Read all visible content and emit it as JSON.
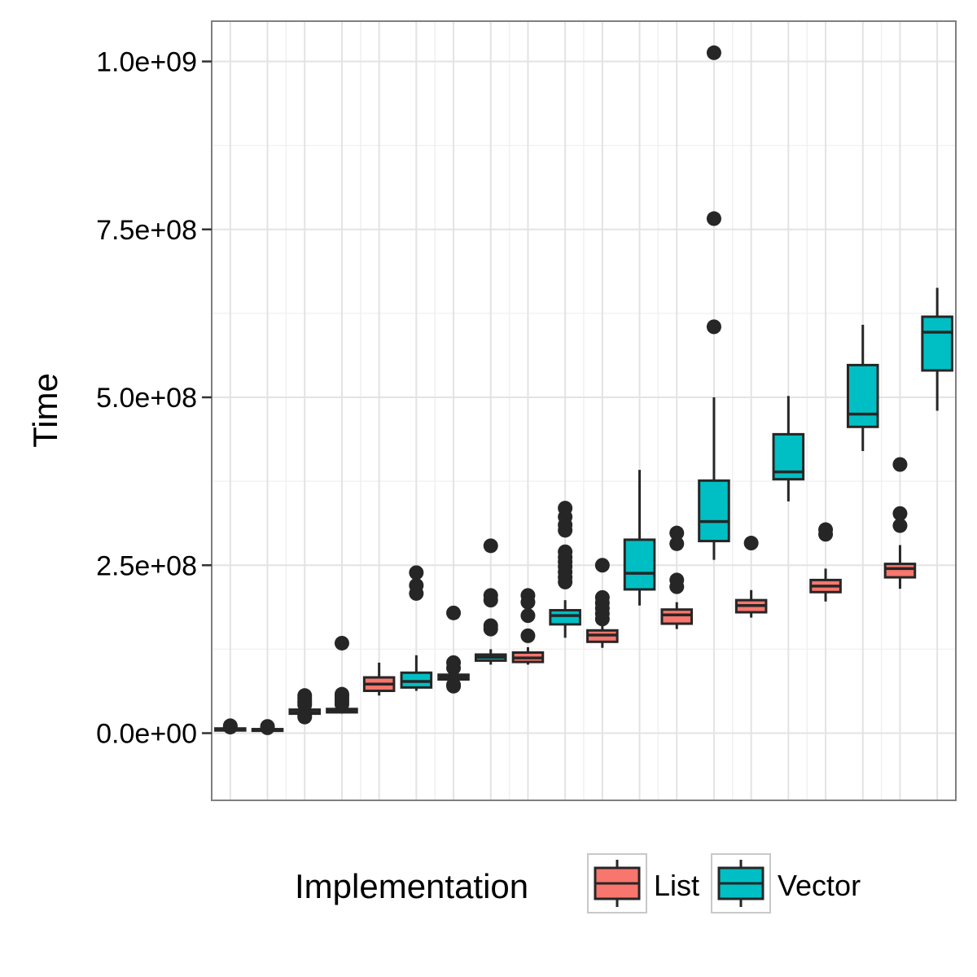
{
  "chart_data": {
    "type": "boxplot",
    "title": "",
    "xlabel": "",
    "ylabel": "Time",
    "ylim": [
      -100000000,
      1060000000
    ],
    "y_ticks": [
      0,
      250000000,
      500000000,
      750000000,
      1000000000
    ],
    "y_tick_labels": [
      "0.0e+00",
      "2.5e+08",
      "5.0e+08",
      "7.5e+08",
      "1.0e+09"
    ],
    "x_tick_labels": [],
    "grid": true,
    "legend": {
      "title": "Implementation",
      "position": "bottom",
      "entries": [
        {
          "name": "List",
          "color": "#F8766D"
        },
        {
          "name": "Vector",
          "color": "#00BFC4"
        }
      ]
    },
    "groups": [
      {
        "List": {
          "whisker_low": 3000000,
          "q1": 4000000,
          "median": 6000000,
          "q3": 7000000,
          "whisker_high": 8000000,
          "outliers": [
            11000000,
            9000000
          ]
        },
        "Vector": {
          "whisker_low": 2500000,
          "q1": 3500000,
          "median": 5000000,
          "q3": 6000000,
          "whisker_high": 7500000,
          "outliers": [
            10000000,
            8000000
          ]
        }
      },
      {
        "List": {
          "whisker_low": 26000000,
          "q1": 29000000,
          "median": 31000000,
          "q3": 35000000,
          "whisker_high": 38000000,
          "outliers": [
            56000000,
            52000000,
            48000000,
            45000000,
            42000000,
            27000000,
            24000000
          ]
        },
        "Vector": {
          "whisker_low": 29000000,
          "q1": 31000000,
          "median": 33000000,
          "q3": 36000000,
          "whisker_high": 40000000,
          "outliers": [
            134000000,
            58000000,
            55000000,
            51000000,
            47000000,
            43000000
          ]
        }
      },
      {
        "List": {
          "whisker_low": 56000000,
          "q1": 63000000,
          "median": 73000000,
          "q3": 83000000,
          "whisker_high": 105000000,
          "outliers": []
        },
        "Vector": {
          "whisker_low": 63000000,
          "q1": 68000000,
          "median": 77000000,
          "q3": 90000000,
          "whisker_high": 116000000,
          "outliers": [
            239000000,
            220000000,
            208000000
          ]
        }
      },
      {
        "List": {
          "whisker_low": 77000000,
          "q1": 80000000,
          "median": 84000000,
          "q3": 87000000,
          "whisker_high": 91000000,
          "outliers": [
            179000000,
            105000000,
            97000000,
            72000000,
            70000000
          ]
        },
        "Vector": {
          "whisker_low": 102000000,
          "q1": 108000000,
          "median": 113000000,
          "q3": 117000000,
          "whisker_high": 125000000,
          "outliers": [
            279000000,
            205000000,
            198000000,
            160000000,
            155000000
          ]
        }
      },
      {
        "List": {
          "whisker_low": 102000000,
          "q1": 106000000,
          "median": 112000000,
          "q3": 120000000,
          "whisker_high": 128000000,
          "outliers": [
            205000000,
            195000000,
            175000000,
            145000000
          ]
        },
        "Vector": {
          "whisker_low": 142000000,
          "q1": 162000000,
          "median": 175000000,
          "q3": 183000000,
          "whisker_high": 198000000,
          "outliers": [
            335000000,
            322000000,
            310000000,
            302000000,
            270000000,
            262000000,
            255000000,
            248000000,
            240000000,
            232000000,
            225000000
          ]
        }
      },
      {
        "List": {
          "whisker_low": 127000000,
          "q1": 136000000,
          "median": 146000000,
          "q3": 153000000,
          "whisker_high": 162000000,
          "outliers": [
            250000000,
            202000000,
            194000000,
            186000000,
            178000000,
            170000000
          ]
        },
        "Vector": {
          "whisker_low": 190000000,
          "q1": 214000000,
          "median": 238000000,
          "q3": 288000000,
          "whisker_high": 392000000,
          "outliers": []
        }
      },
      {
        "List": {
          "whisker_low": 155000000,
          "q1": 163000000,
          "median": 176000000,
          "q3": 184000000,
          "whisker_high": 195000000,
          "outliers": [
            298000000,
            282000000,
            228000000,
            218000000
          ]
        },
        "Vector": {
          "whisker_low": 258000000,
          "q1": 286000000,
          "median": 315000000,
          "q3": 376000000,
          "whisker_high": 500000000,
          "outliers": [
            1013000000,
            766000000,
            605000000
          ]
        }
      },
      {
        "List": {
          "whisker_low": 172000000,
          "q1": 180000000,
          "median": 190000000,
          "q3": 198000000,
          "whisker_high": 213000000,
          "outliers": [
            283000000
          ]
        },
        "Vector": {
          "whisker_low": 345000000,
          "q1": 378000000,
          "median": 389000000,
          "q3": 445000000,
          "whisker_high": 502000000,
          "outliers": []
        }
      },
      {
        "List": {
          "whisker_low": 196000000,
          "q1": 210000000,
          "median": 219000000,
          "q3": 228000000,
          "whisker_high": 245000000,
          "outliers": [
            303000000,
            296000000
          ]
        },
        "Vector": {
          "whisker_low": 420000000,
          "q1": 456000000,
          "median": 475000000,
          "q3": 548000000,
          "whisker_high": 608000000,
          "outliers": []
        }
      },
      {
        "List": {
          "whisker_low": 215000000,
          "q1": 232000000,
          "median": 245000000,
          "q3": 252000000,
          "whisker_high": 280000000,
          "outliers": [
            400000000,
            327000000,
            309000000
          ]
        },
        "Vector": {
          "whisker_low": 480000000,
          "q1": 540000000,
          "median": 597000000,
          "q3": 620000000,
          "whisker_high": 663000000,
          "outliers": []
        }
      }
    ]
  }
}
